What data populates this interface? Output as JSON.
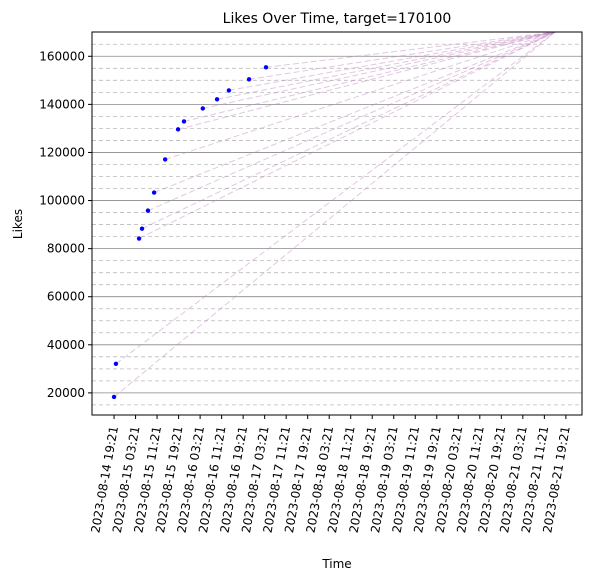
{
  "chart_data": {
    "type": "scatter",
    "title": "Likes Over Time, target=170100",
    "x_label": "Time",
    "y_label": "Likes",
    "target": 170100,
    "target_time": "2023-08-21 15:21",
    "series": [
      {
        "name": "Likes",
        "color": "#0000ff",
        "x": [
          "2023-08-14 19:21",
          "2023-08-14 20:03",
          "2023-08-15 04:39",
          "2023-08-15 05:45",
          "2023-08-15 07:57",
          "2023-08-15 10:15",
          "2023-08-15 14:21",
          "2023-08-15 19:09",
          "2023-08-15 21:21",
          "2023-08-16 04:21",
          "2023-08-16 09:39",
          "2023-08-16 14:03",
          "2023-08-16 21:33",
          "2023-08-17 03:51"
        ],
        "values": [
          18300,
          32100,
          84200,
          88300,
          95800,
          103300,
          117100,
          129600,
          132900,
          138300,
          142100,
          145800,
          150400,
          155400
        ]
      }
    ],
    "projection_color": "#c080c0",
    "xlim": [
      "2023-08-14 11:09",
      "2023-08-22 01:21"
    ],
    "xticks": [
      "2023-08-14 19:21",
      "2023-08-15 03:21",
      "2023-08-15 11:21",
      "2023-08-15 19:21",
      "2023-08-16 03:21",
      "2023-08-16 11:21",
      "2023-08-16 19:21",
      "2023-08-17 03:21",
      "2023-08-17 11:21",
      "2023-08-17 19:21",
      "2023-08-18 03:21",
      "2023-08-18 11:21",
      "2023-08-18 19:21",
      "2023-08-19 03:21",
      "2023-08-19 11:21",
      "2023-08-19 19:21",
      "2023-08-20 03:21",
      "2023-08-20 11:21",
      "2023-08-20 19:21",
      "2023-08-21 03:21",
      "2023-08-21 11:21",
      "2023-08-21 19:21"
    ],
    "ylim": [
      10800,
      170100
    ],
    "yticks": [
      20000,
      40000,
      60000,
      80000,
      100000,
      120000,
      140000,
      160000
    ],
    "minor_yticks": [
      15000,
      25000,
      30000,
      35000,
      45000,
      50000,
      55000,
      65000,
      70000,
      75000,
      85000,
      90000,
      95000,
      105000,
      110000,
      115000,
      125000,
      130000,
      135000,
      145000,
      150000,
      155000,
      165000
    ],
    "grid": true
  }
}
